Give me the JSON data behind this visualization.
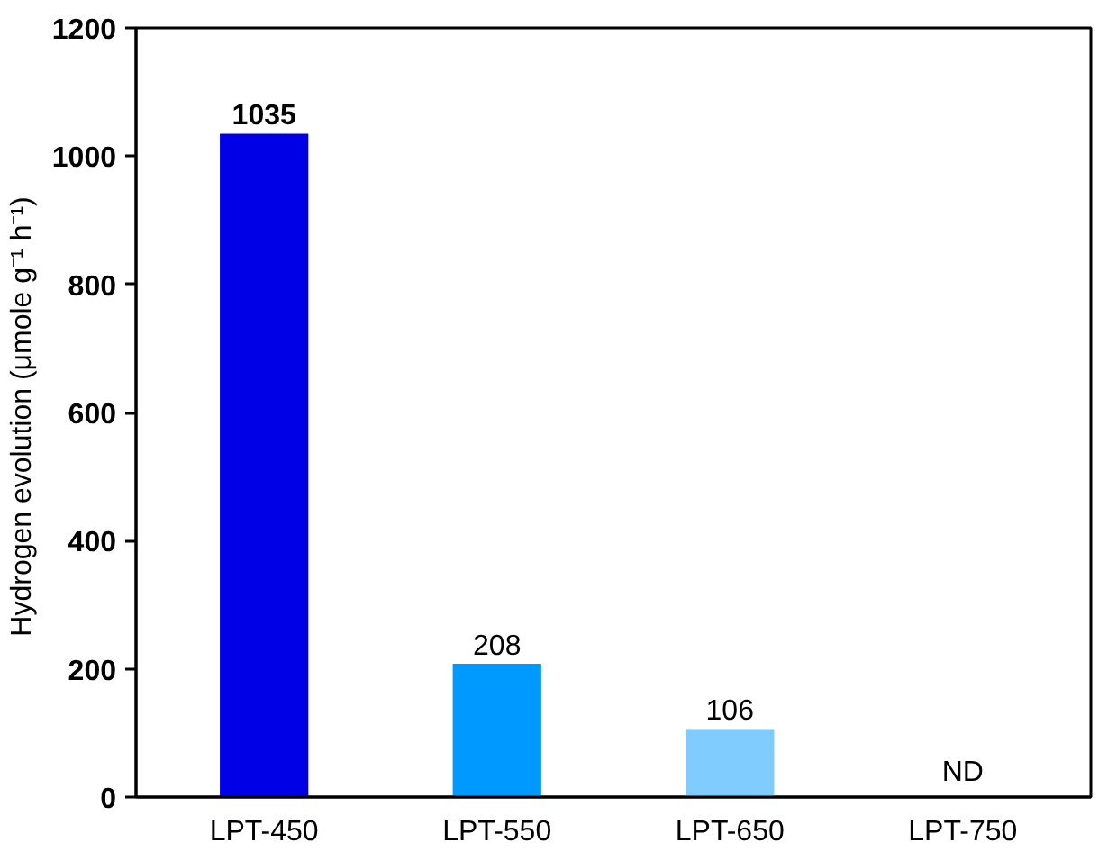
{
  "chart_data": {
    "type": "bar",
    "ylabel": "Hydrogen evolution  (μmole g⁻¹ h⁻¹)",
    "categories": [
      "LPT-450",
      "LPT-550",
      "LPT-650",
      "LPT-750"
    ],
    "values": [
      1035,
      208,
      106,
      null
    ],
    "colors": [
      "#0000e6",
      "#0099ff",
      "#80ccff",
      "#cccccc"
    ],
    "value_labels": [
      "1035",
      "208",
      "106",
      "ND"
    ],
    "ylim": [
      0,
      1200
    ],
    "yticks": [
      0,
      200,
      400,
      600,
      800,
      1000,
      1200
    ],
    "grid": false
  }
}
